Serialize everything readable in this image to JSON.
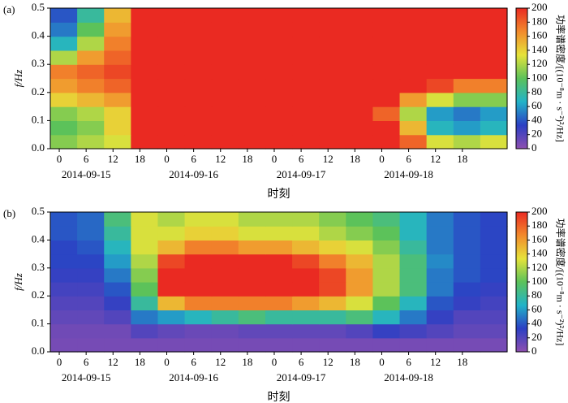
{
  "chart_data": [
    {
      "type": "heatmap",
      "label": "(a)",
      "ylabel": "f/Hz",
      "xlabel": "时刻",
      "colorbar_label": "功率谱密度/[(10⁻⁸m · s⁻²)²/Hz]",
      "colors": [
        "#8e4fb0",
        "#2b3fc4",
        "#22b3c8",
        "#5cc25a",
        "#e6e33a",
        "#f28a2c",
        "#ea2a22"
      ],
      "xlim": [
        -2,
        100
      ],
      "ylim": [
        0,
        0.5
      ],
      "clim": [
        0,
        200
      ],
      "xticks": [
        {
          "value": 0,
          "label": "0"
        },
        {
          "value": 6,
          "label": "6"
        },
        {
          "value": 12,
          "label": "12"
        },
        {
          "value": 18,
          "label": "18"
        },
        {
          "value": 24,
          "label": "0"
        },
        {
          "value": 30,
          "label": "6"
        },
        {
          "value": 36,
          "label": "12"
        },
        {
          "value": 42,
          "label": "18"
        },
        {
          "value": 48,
          "label": "0"
        },
        {
          "value": 54,
          "label": "6"
        },
        {
          "value": 60,
          "label": "12"
        },
        {
          "value": 66,
          "label": "18"
        },
        {
          "value": 72,
          "label": "0"
        },
        {
          "value": 78,
          "label": "6"
        },
        {
          "value": 84,
          "label": "12"
        },
        {
          "value": 90,
          "label": "18"
        }
      ],
      "date_labels": [
        {
          "value": 6,
          "label": "2014-09-15"
        },
        {
          "value": 30,
          "label": "2014-09-16"
        },
        {
          "value": 54,
          "label": "2014-09-17"
        },
        {
          "value": 78,
          "label": "2014-09-18"
        }
      ],
      "yticks": [
        {
          "value": 0,
          "label": "0.0"
        },
        0.1,
        0.2,
        0.3,
        0.4,
        0.5
      ],
      "cticks": [
        0,
        20,
        40,
        60,
        80,
        100,
        120,
        140,
        160,
        180,
        200
      ],
      "xbins": [
        -2,
        4,
        10,
        16,
        22,
        28,
        34,
        40,
        46,
        52,
        58,
        64,
        70,
        76,
        82,
        88,
        94,
        100
      ],
      "ybins": [
        0,
        0.05,
        0.1,
        0.15,
        0.2,
        0.25,
        0.3,
        0.35,
        0.4,
        0.45,
        0.5
      ],
      "z": [
        [
          110,
          120,
          130,
          200,
          200,
          200,
          200,
          200,
          200,
          200,
          200,
          200,
          200,
          180,
          130,
          120,
          130
        ],
        [
          100,
          110,
          140,
          200,
          200,
          200,
          200,
          200,
          200,
          200,
          200,
          200,
          200,
          150,
          70,
          60,
          70
        ],
        [
          110,
          120,
          140,
          200,
          200,
          200,
          200,
          200,
          200,
          200,
          200,
          200,
          180,
          120,
          60,
          50,
          60
        ],
        [
          140,
          150,
          160,
          200,
          200,
          200,
          200,
          200,
          200,
          200,
          200,
          200,
          200,
          160,
          130,
          110,
          110
        ],
        [
          160,
          170,
          180,
          200,
          200,
          200,
          200,
          200,
          200,
          200,
          200,
          200,
          200,
          200,
          190,
          170,
          170
        ],
        [
          170,
          180,
          190,
          200,
          200,
          200,
          200,
          200,
          200,
          200,
          200,
          200,
          200,
          200,
          200,
          200,
          200
        ],
        [
          120,
          160,
          180,
          200,
          200,
          200,
          200,
          200,
          200,
          200,
          200,
          200,
          200,
          200,
          200,
          200,
          200
        ],
        [
          70,
          120,
          170,
          200,
          200,
          200,
          200,
          200,
          200,
          200,
          200,
          200,
          200,
          200,
          200,
          200,
          200
        ],
        [
          50,
          100,
          160,
          200,
          200,
          200,
          200,
          200,
          200,
          200,
          200,
          200,
          200,
          200,
          200,
          200,
          200
        ],
        [
          40,
          80,
          150,
          200,
          200,
          200,
          200,
          200,
          200,
          200,
          200,
          200,
          200,
          200,
          200,
          200,
          200
        ]
      ]
    },
    {
      "type": "heatmap",
      "label": "(b)",
      "ylabel": "f/Hz",
      "xlabel": "时刻",
      "colorbar_label": "功率谱密度/[(10⁻⁸m · s⁻²)²/Hz]",
      "colors": [
        "#8e4fb0",
        "#2b3fc4",
        "#22b3c8",
        "#5cc25a",
        "#e6e33a",
        "#f28a2c",
        "#ea2a22"
      ],
      "xlim": [
        -2,
        100
      ],
      "ylim": [
        0,
        0.5
      ],
      "clim": [
        0,
        200
      ],
      "xticks": [
        {
          "value": 0,
          "label": "0"
        },
        {
          "value": 6,
          "label": "6"
        },
        {
          "value": 12,
          "label": "12"
        },
        {
          "value": 18,
          "label": "18"
        },
        {
          "value": 24,
          "label": "0"
        },
        {
          "value": 30,
          "label": "6"
        },
        {
          "value": 36,
          "label": "12"
        },
        {
          "value": 42,
          "label": "18"
        },
        {
          "value": 48,
          "label": "0"
        },
        {
          "value": 54,
          "label": "6"
        },
        {
          "value": 60,
          "label": "12"
        },
        {
          "value": 66,
          "label": "18"
        },
        {
          "value": 72,
          "label": "0"
        },
        {
          "value": 78,
          "label": "6"
        },
        {
          "value": 84,
          "label": "12"
        },
        {
          "value": 90,
          "label": "18"
        }
      ],
      "date_labels": [
        {
          "value": 6,
          "label": "2014-09-15"
        },
        {
          "value": 30,
          "label": "2014-09-16"
        },
        {
          "value": 54,
          "label": "2014-09-17"
        },
        {
          "value": 78,
          "label": "2014-09-18"
        }
      ],
      "yticks": [
        {
          "value": 0,
          "label": "0.0"
        },
        0.1,
        0.2,
        0.3,
        0.4,
        0.5
      ],
      "cticks": [
        0,
        20,
        40,
        60,
        80,
        100,
        120,
        140,
        160,
        180,
        200
      ],
      "xbins": [
        -2,
        4,
        10,
        16,
        22,
        28,
        34,
        40,
        46,
        52,
        58,
        64,
        70,
        76,
        82,
        88,
        94,
        100
      ],
      "ybins": [
        0,
        0.05,
        0.1,
        0.15,
        0.2,
        0.25,
        0.3,
        0.35,
        0.4,
        0.45,
        0.5
      ],
      "z": [
        [
          8,
          8,
          8,
          8,
          8,
          8,
          8,
          8,
          8,
          8,
          8,
          8,
          8,
          8,
          8,
          8,
          8
        ],
        [
          10,
          10,
          10,
          20,
          15,
          12,
          12,
          15,
          15,
          15,
          15,
          20,
          30,
          25,
          20,
          15,
          15
        ],
        [
          15,
          15,
          20,
          50,
          60,
          70,
          80,
          90,
          80,
          80,
          80,
          90,
          70,
          50,
          30,
          20,
          20
        ],
        [
          20,
          20,
          30,
          80,
          150,
          170,
          170,
          170,
          170,
          160,
          150,
          130,
          100,
          70,
          40,
          30,
          25
        ],
        [
          25,
          25,
          40,
          100,
          200,
          200,
          200,
          200,
          200,
          200,
          190,
          160,
          120,
          90,
          50,
          35,
          30
        ],
        [
          30,
          30,
          50,
          110,
          200,
          200,
          200,
          200,
          200,
          200,
          190,
          160,
          120,
          90,
          50,
          40,
          35
        ],
        [
          35,
          35,
          60,
          120,
          190,
          200,
          200,
          200,
          200,
          190,
          170,
          150,
          120,
          90,
          55,
          40,
          35
        ],
        [
          35,
          40,
          70,
          130,
          150,
          170,
          170,
          160,
          160,
          150,
          140,
          130,
          110,
          80,
          50,
          40,
          35
        ],
        [
          40,
          45,
          80,
          130,
          130,
          140,
          140,
          130,
          130,
          130,
          120,
          110,
          100,
          70,
          50,
          40,
          35
        ],
        [
          40,
          45,
          90,
          130,
          120,
          130,
          130,
          120,
          120,
          120,
          110,
          100,
          90,
          70,
          50,
          40,
          35
        ]
      ]
    }
  ]
}
